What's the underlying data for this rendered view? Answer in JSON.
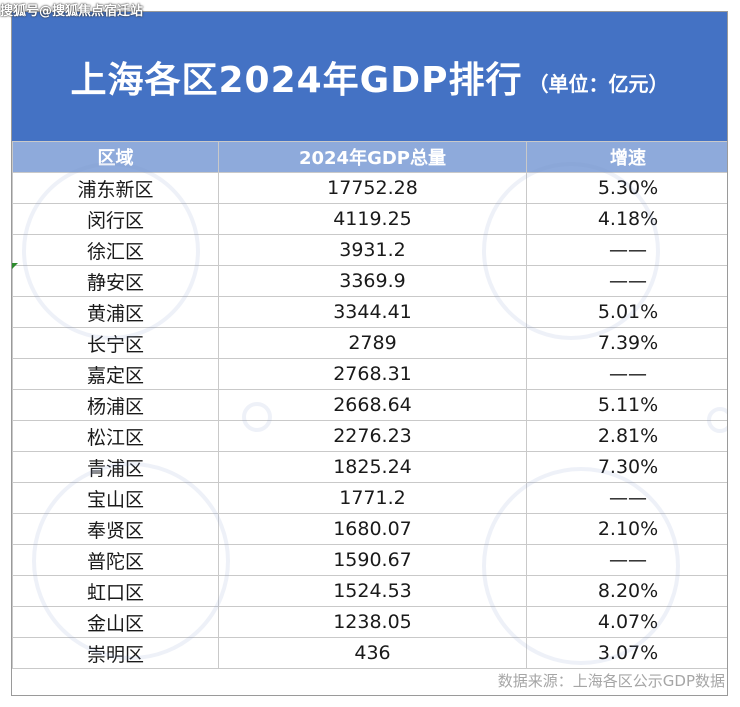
{
  "watermark": "搜狐号@搜狐焦点宿迁站",
  "title": "上海各区2024年GDP排行",
  "unit": "（单位：亿元）",
  "headers": [
    "区域",
    "2024年GDP总量",
    "增速"
  ],
  "rows": [
    {
      "region": "浦东新区",
      "gdp": "17752.28",
      "growth": "5.30%"
    },
    {
      "region": "闵行区",
      "gdp": "4119.25",
      "growth": "4.18%"
    },
    {
      "region": "徐汇区",
      "gdp": "3931.2",
      "growth": "——"
    },
    {
      "region": "静安区",
      "gdp": "3369.9",
      "growth": "——"
    },
    {
      "region": "黄浦区",
      "gdp": "3344.41",
      "growth": "5.01%"
    },
    {
      "region": "长宁区",
      "gdp": "2789",
      "growth": "7.39%"
    },
    {
      "region": "嘉定区",
      "gdp": "2768.31",
      "growth": "——"
    },
    {
      "region": "杨浦区",
      "gdp": "2668.64",
      "growth": "5.11%"
    },
    {
      "region": "松江区",
      "gdp": "2276.23",
      "growth": "2.81%"
    },
    {
      "region": "青浦区",
      "gdp": "1825.24",
      "growth": "7.30%"
    },
    {
      "region": "宝山区",
      "gdp": "1771.2",
      "growth": "——"
    },
    {
      "region": "奉贤区",
      "gdp": "1680.07",
      "growth": "2.10%"
    },
    {
      "region": "普陀区",
      "gdp": "1590.67",
      "growth": "——"
    },
    {
      "region": "虹口区",
      "gdp": "1524.53",
      "growth": "8.20%"
    },
    {
      "region": "金山区",
      "gdp": "1238.05",
      "growth": "4.07%"
    },
    {
      "region": "崇明区",
      "gdp": "436",
      "growth": "3.07%"
    }
  ],
  "footnote": "数据来源：上海各区公示GDP数据",
  "colors": {
    "title_bg": "#4472c4",
    "header_bg": "#8eaadb"
  }
}
